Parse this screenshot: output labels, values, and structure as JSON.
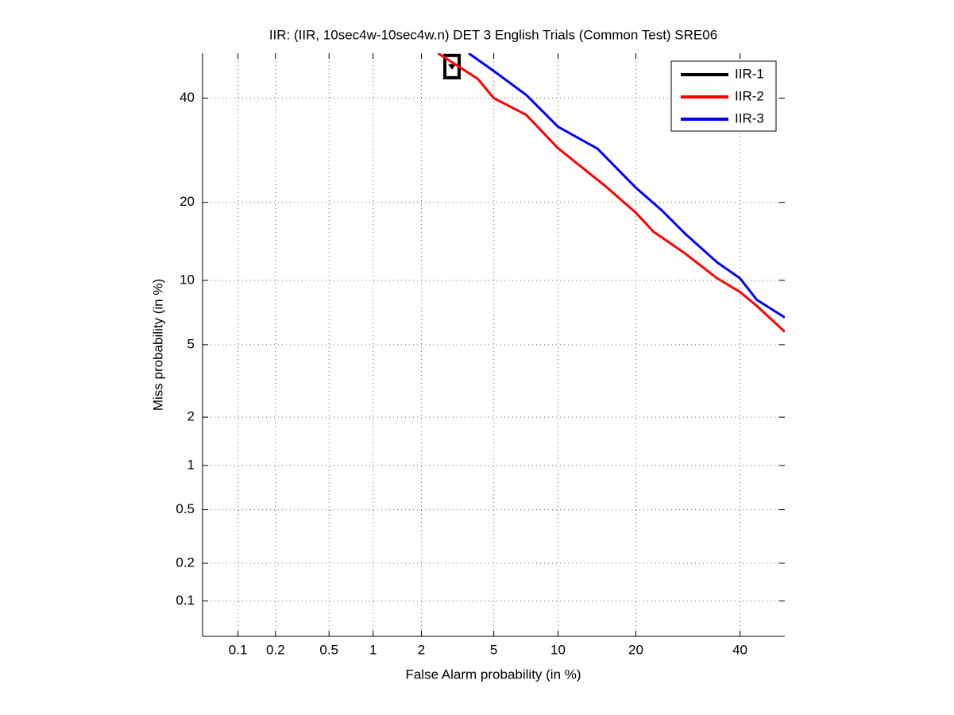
{
  "chart_data": {
    "type": "det",
    "title": "IIR: (IIR, 10sec4w-10sec4w.n) DET 3 English Trials (Common Test) SRE06",
    "x_label": "False Alarm probability (in %)",
    "y_label": "Miss probability (in %)",
    "xlim": [
      0.05,
      50
    ],
    "ylim": [
      0.05,
      50
    ],
    "xticks": [
      0.1,
      0.2,
      0.5,
      1,
      2,
      5,
      10,
      20,
      40
    ],
    "yticks": [
      0.1,
      0.2,
      0.5,
      1,
      2,
      5,
      10,
      20,
      40
    ],
    "grid": true,
    "legend": "upper right",
    "series": [
      {
        "name": "IIR-1",
        "color": "#000000",
        "x": [
          3.0
        ],
        "values": [
          47
        ]
      },
      {
        "name": "IIR-2",
        "color": "#ff0000",
        "x": [
          2.5,
          4.15,
          5,
          7.2,
          10,
          15.6,
          20,
          22.9,
          28.7,
          35.1,
          40,
          43.7,
          50
        ],
        "values": [
          50,
          44.2,
          40,
          36.4,
          29.6,
          22.6,
          18.4,
          15.7,
          12.9,
          10.2,
          8.9,
          7.7,
          5.8
        ]
      },
      {
        "name": "IIR-3",
        "color": "#0000ff",
        "x": [
          3.7,
          5.0,
          7.2,
          10,
          14.5,
          20,
          24.3,
          28.7,
          35.1,
          40,
          43.7,
          50
        ],
        "values": [
          50,
          46,
          40.7,
          33.9,
          29.5,
          22.4,
          18.8,
          15.4,
          11.9,
          10.2,
          8.2,
          6.8
        ]
      }
    ]
  }
}
